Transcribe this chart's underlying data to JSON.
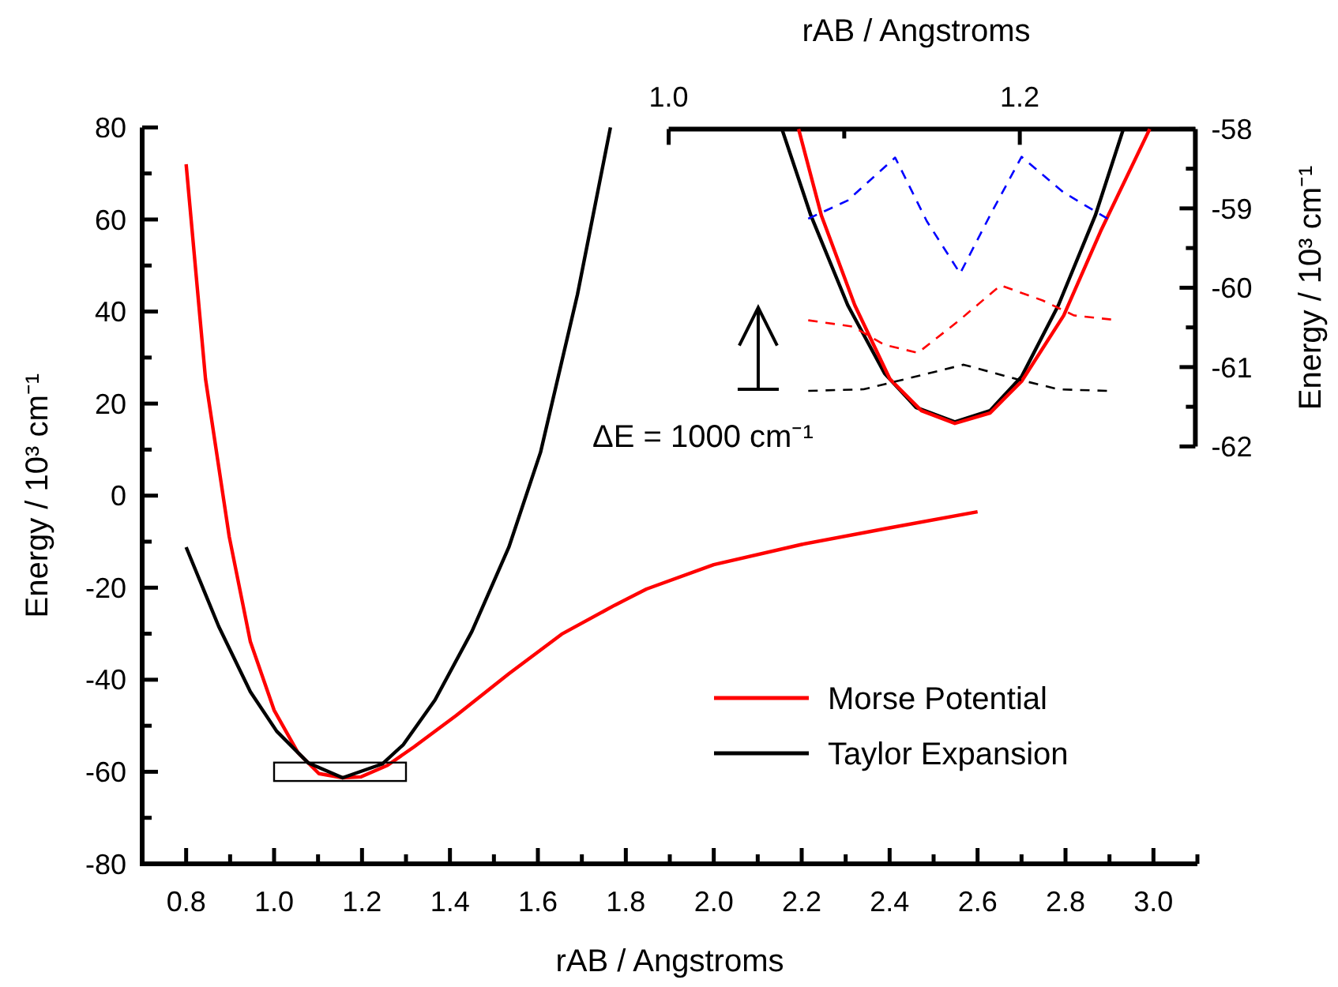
{
  "chart_data": [
    {
      "type": "line",
      "xlabel": "rAB / Angstroms",
      "ylabel": "Energy / 10³ cm⁻¹",
      "xlim": [
        0.7,
        3.1
      ],
      "ylim": [
        -80,
        80
      ],
      "xticks": [
        {
          "value": 0.8,
          "label": "0.8"
        },
        {
          "value": 0.9,
          "label": null
        },
        {
          "value": 1.0,
          "label": "1.0"
        },
        {
          "value": 1.1,
          "label": null
        },
        {
          "value": 1.2,
          "label": "1.2"
        },
        {
          "value": 1.3,
          "label": null
        },
        {
          "value": 1.4,
          "label": "1.4"
        },
        {
          "value": 1.5,
          "label": null
        },
        {
          "value": 1.6,
          "label": "1.6"
        },
        {
          "value": 1.7,
          "label": null
        },
        {
          "value": 1.8,
          "label": "1.8"
        },
        {
          "value": 1.9,
          "label": null
        },
        {
          "value": 2.0,
          "label": "2.0"
        },
        {
          "value": 2.1,
          "label": null
        },
        {
          "value": 2.2,
          "label": "2.2"
        },
        {
          "value": 2.3,
          "label": null
        },
        {
          "value": 2.4,
          "label": "2.4"
        },
        {
          "value": 2.5,
          "label": null
        },
        {
          "value": 2.6,
          "label": "2.6"
        },
        {
          "value": 2.7,
          "label": null
        },
        {
          "value": 2.8,
          "label": "2.8"
        },
        {
          "value": 2.9,
          "label": null
        },
        {
          "value": 3.0,
          "label": "3.0"
        },
        {
          "value": 3.1,
          "label": null
        }
      ],
      "yticks": [
        -80,
        {
          "value": -70,
          "label": null
        },
        -60,
        {
          "value": -50,
          "label": null
        },
        -40,
        {
          "value": -30,
          "label": null
        },
        -20,
        {
          "value": -10,
          "label": null
        },
        0,
        {
          "value": 10,
          "label": null
        },
        20,
        {
          "value": 30,
          "label": null
        },
        40,
        {
          "value": 50,
          "label": null
        },
        60,
        {
          "value": 70,
          "label": null
        },
        80
      ],
      "legend": "bottom right",
      "grid": false,
      "series": [
        {
          "name": "Morse Potential",
          "color": "#ff0000",
          "x": [
            0.8,
            0.844,
            0.898,
            0.946,
            1.0,
            1.054,
            1.102,
            1.156,
            1.198,
            1.258,
            1.318,
            1.414,
            1.534,
            1.654,
            1.775,
            1.847,
            2.0,
            2.2,
            2.4,
            2.6
          ],
          "values": [
            72,
            25.4,
            -8.9,
            -31.7,
            -46.6,
            -55.8,
            -60.4,
            -61.3,
            -61.1,
            -58.6,
            -54.6,
            -47.8,
            -38.7,
            -30.1,
            -23.8,
            -20.3,
            -15,
            -10.6,
            -7,
            -3.5
          ]
        },
        {
          "name": "Taylor Expansion",
          "color": "#000000",
          "x": [
            0.8,
            0.874,
            0.946,
            1.006,
            1.078,
            1.156,
            1.246,
            1.294,
            1.366,
            1.45,
            1.534,
            1.606,
            1.69,
            1.765
          ],
          "values": [
            -11.2,
            -28.4,
            -42.6,
            -51.2,
            -58.1,
            -61.3,
            -58.3,
            -54.1,
            -44.4,
            -29.5,
            -11.2,
            9.4,
            43.7,
            80
          ]
        }
      ]
    },
    {
      "type": "line",
      "xlabel": "rAB / Angstroms",
      "ylabel": "Energy / 10³ cm⁻¹",
      "xlim": [
        1.0,
        1.3
      ],
      "ylim": [
        -62,
        -58
      ],
      "xticks": [
        {
          "value": 1.0,
          "label": "1.0"
        },
        {
          "value": 1.1,
          "label": null
        },
        {
          "value": 1.2,
          "label": "1.2"
        }
      ],
      "yticks": [
        -62,
        {
          "value": -61.5,
          "label": null
        },
        -61,
        {
          "value": -60.5,
          "label": null
        },
        -60,
        {
          "value": -59.5,
          "label": null
        },
        -59,
        {
          "value": -58.5,
          "label": null
        },
        -58
      ],
      "annotations": [
        "ΔE = 1000 cm⁻¹"
      ],
      "series": [
        {
          "color": "#000000",
          "x": [
            1.0645,
            1.081,
            1.102,
            1.123,
            1.141,
            1.163,
            1.183,
            1.201,
            1.222,
            1.243,
            1.259
          ],
          "values": [
            -58,
            -59.09,
            -60.22,
            -61.08,
            -61.51,
            -61.69,
            -61.55,
            -61.12,
            -60.22,
            -59.09,
            -58
          ]
        },
        {
          "color": "#ff0000",
          "x": [
            1.074,
            1.087,
            1.106,
            1.126,
            1.144,
            1.163,
            1.183,
            1.201,
            1.225,
            1.246,
            1.274
          ],
          "values": [
            -58,
            -59.09,
            -60.22,
            -61.15,
            -61.55,
            -61.71,
            -61.58,
            -61.18,
            -60.35,
            -59.29,
            -58
          ]
        },
        {
          "color": "#0000ff",
          "line_style": "dashed",
          "x": [
            1.0795,
            1.102,
            1.129,
            1.147,
            1.166,
            1.183,
            1.201,
            1.225,
            1.25
          ],
          "values": [
            -59.13,
            -58.9,
            -58.36,
            -59.16,
            -59.82,
            -59.09,
            -58.35,
            -58.8,
            -59.13
          ]
        },
        {
          "color": "#ff0000",
          "line_style": "dashed",
          "x": [
            1.0795,
            1.105,
            1.123,
            1.142,
            1.165,
            1.189,
            1.213,
            1.231,
            1.252
          ],
          "values": [
            -60.41,
            -60.49,
            -60.72,
            -60.82,
            -60.42,
            -59.97,
            -60.16,
            -60.35,
            -60.4
          ]
        },
        {
          "color": "#000000",
          "line_style": "dashed",
          "x": [
            1.0795,
            1.111,
            1.135,
            1.168,
            1.198,
            1.222,
            1.25
          ],
          "values": [
            -61.3,
            -61.28,
            -61.15,
            -60.97,
            -61.15,
            -61.28,
            -61.3
          ]
        }
      ]
    }
  ]
}
